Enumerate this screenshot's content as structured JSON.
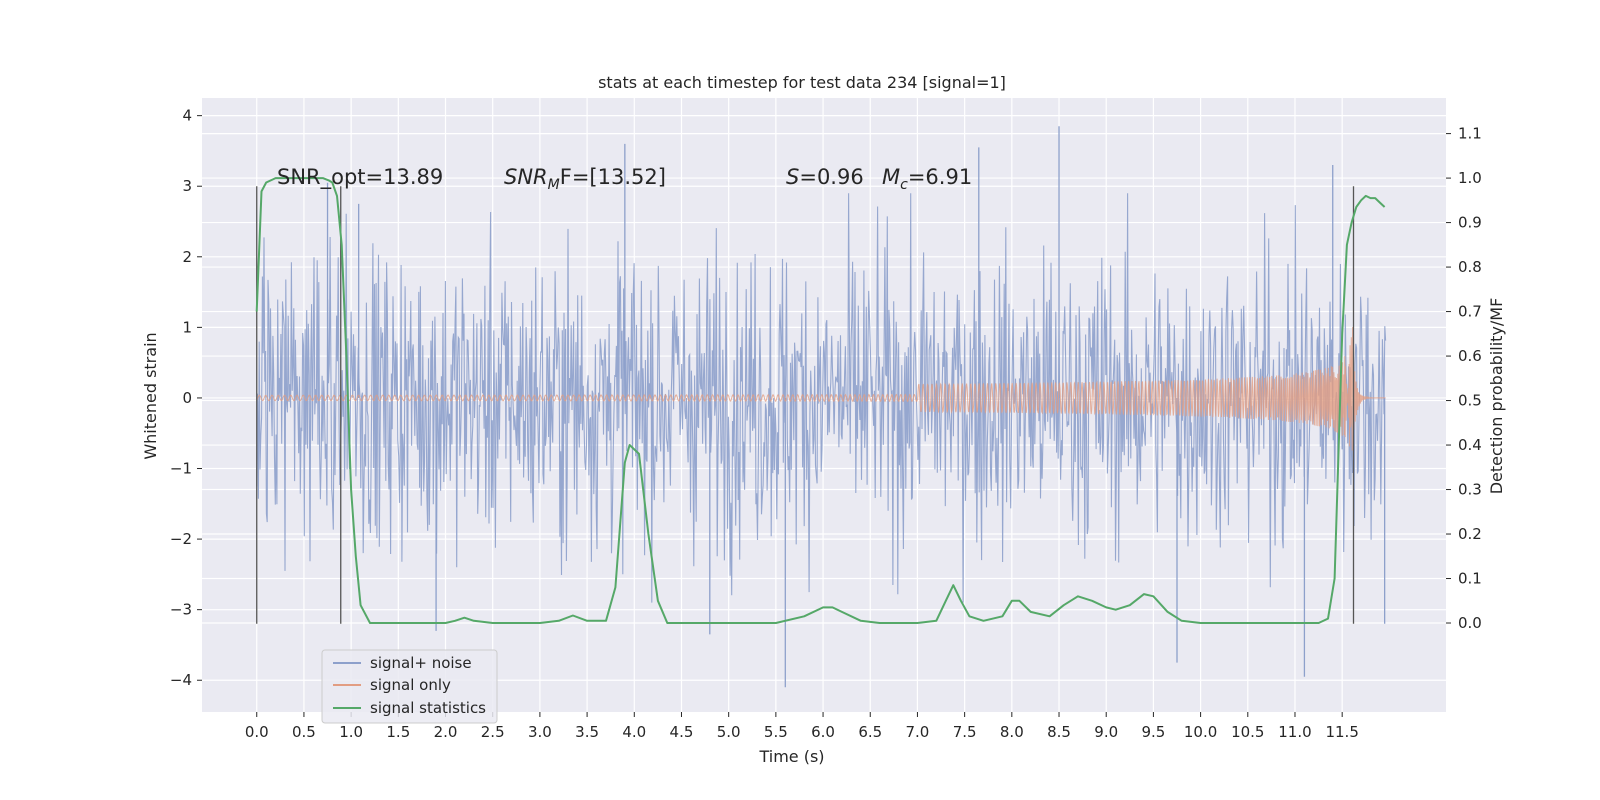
{
  "chart_data": {
    "type": "line",
    "title": "stats at each timestep for test data 234 [signal=1]",
    "xlabel": "Time (s)",
    "ylabel": "Whitened strain",
    "y2label": "Detection probability/MF",
    "xlim": [
      -0.58,
      12.6
    ],
    "ylim": [
      -4.45,
      4.25
    ],
    "y2lim": [
      -0.2,
      1.18
    ],
    "xticks": [
      "0.0",
      "0.5",
      "1.0",
      "1.5",
      "2.0",
      "2.5",
      "3.0",
      "3.5",
      "4.0",
      "4.5",
      "5.0",
      "5.5",
      "6.0",
      "6.5",
      "7.0",
      "7.5",
      "8.0",
      "8.5",
      "9.0",
      "9.5",
      "10.0",
      "10.5",
      "11.0",
      "11.5"
    ],
    "yticks": [
      "4",
      "3",
      "2",
      "1",
      "0",
      "−1",
      "−2",
      "−3",
      "−4"
    ],
    "y2ticks": [
      "1.1",
      "1.0",
      "0.9",
      "0.8",
      "0.7",
      "0.6",
      "0.5",
      "0.4",
      "0.3",
      "0.2",
      "0.1",
      "0.0"
    ],
    "grid": true,
    "legend_position": "lower-left",
    "annotations": {
      "snr_opt": "SNR_opt=13.89",
      "snr_mf_prefix": "SNR",
      "snr_mf_sub": "M",
      "snr_mf_suffix": "F=[13.52]",
      "s_prefix": "S",
      "s_value": "=0.96",
      "mc_prefix": "M",
      "mc_sub": "c",
      "mc_value": "=6.91"
    },
    "vlines": [
      0.0,
      0.89,
      11.62
    ],
    "noise_peaks": [
      {
        "x": 0.75,
        "y": 3.05
      },
      {
        "x": 1.08,
        "y": 2.75
      },
      {
        "x": 1.9,
        "y": -3.3
      },
      {
        "x": 3.9,
        "y": 3.6
      },
      {
        "x": 4.8,
        "y": -3.35
      },
      {
        "x": 5.6,
        "y": -4.1
      },
      {
        "x": 7.65,
        "y": 3.55
      },
      {
        "x": 8.5,
        "y": 3.85
      },
      {
        "x": 9.75,
        "y": -3.75
      },
      {
        "x": 11.1,
        "y": -3.95
      },
      {
        "x": 11.4,
        "y": 3.3
      },
      {
        "x": 11.95,
        "y": -3.2
      }
    ],
    "series": [
      {
        "name": "signal+ noise",
        "color": "#8da0cb",
        "x_range": [
          0.0,
          11.96
        ],
        "approx_envelope": [
          -2.1,
          2.0
        ]
      },
      {
        "name": "signal only",
        "color": "#e29d82",
        "x_range": [
          0.0,
          11.96
        ],
        "chirp_peak_time": 11.62,
        "chirp_peak_amplitude": 1.05
      },
      {
        "name": "signal statistics",
        "color": "#55a868",
        "axis": "right",
        "x": [
          0.0,
          0.05,
          0.1,
          0.2,
          0.3,
          0.5,
          0.7,
          0.76,
          0.8,
          0.85,
          0.9,
          0.95,
          1.0,
          1.05,
          1.1,
          1.2,
          1.5,
          1.8,
          2.0,
          2.1,
          2.2,
          2.3,
          2.5,
          3.0,
          3.2,
          3.35,
          3.5,
          3.7,
          3.8,
          3.9,
          3.95,
          4.05,
          4.15,
          4.25,
          4.35,
          4.5,
          5.0,
          5.5,
          5.8,
          6.0,
          6.1,
          6.2,
          6.4,
          6.6,
          7.0,
          7.2,
          7.3,
          7.38,
          7.46,
          7.55,
          7.7,
          7.9,
          8.0,
          8.08,
          8.2,
          8.4,
          8.55,
          8.7,
          8.85,
          9.0,
          9.1,
          9.25,
          9.4,
          9.5,
          9.65,
          9.8,
          10.0,
          10.5,
          11.0,
          11.25,
          11.35,
          11.42,
          11.5,
          11.55,
          11.6,
          11.65,
          11.7,
          11.75,
          11.8,
          11.85,
          11.9,
          11.95
        ],
        "y": [
          0.7,
          0.97,
          0.99,
          1.0,
          1.0,
          1.0,
          1.0,
          0.995,
          0.99,
          0.96,
          0.85,
          0.6,
          0.3,
          0.15,
          0.04,
          0.0,
          0.0,
          0.0,
          0.0,
          0.005,
          0.012,
          0.005,
          0.0,
          0.0,
          0.005,
          0.017,
          0.005,
          0.005,
          0.08,
          0.36,
          0.4,
          0.38,
          0.2,
          0.05,
          0.0,
          0.0,
          0.0,
          0.0,
          0.015,
          0.035,
          0.035,
          0.025,
          0.005,
          0.0,
          0.0,
          0.005,
          0.05,
          0.085,
          0.05,
          0.015,
          0.005,
          0.015,
          0.05,
          0.05,
          0.025,
          0.015,
          0.04,
          0.06,
          0.05,
          0.035,
          0.03,
          0.04,
          0.065,
          0.06,
          0.025,
          0.005,
          0.0,
          0.0,
          0.0,
          0.0,
          0.01,
          0.1,
          0.65,
          0.85,
          0.9,
          0.935,
          0.95,
          0.96,
          0.955,
          0.955,
          0.945,
          0.935
        ]
      }
    ]
  }
}
